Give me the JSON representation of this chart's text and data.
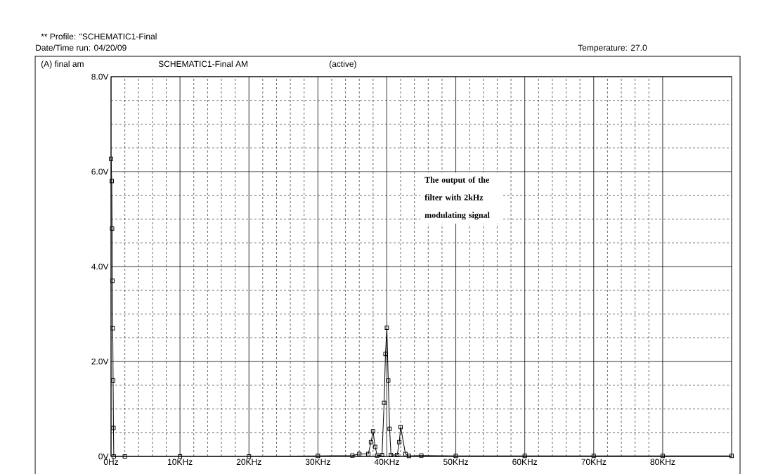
{
  "chart_data": {
    "type": "line",
    "title": "** Profile: \"SCHEMATIC1-Final",
    "subtitle": "Date/Time run: 04/20/09",
    "annotations": [
      "Temperature: 27.0",
      "(A) final am",
      "SCHEMATIC1-Final AM",
      "(active)",
      "The output of the filter with 2kHz modulating signal"
    ],
    "xlim": [
      0,
      90
    ],
    "ylim": [
      0,
      8
    ],
    "xticks": [
      {
        "value": 0,
        "label": "0Hz"
      },
      {
        "value": 10,
        "label": "10KHz"
      },
      {
        "value": 20,
        "label": "20KHz"
      },
      {
        "value": 30,
        "label": "30KHz"
      },
      {
        "value": 40,
        "label": "40KHz"
      },
      {
        "value": 50,
        "label": "50KHz"
      },
      {
        "value": 60,
        "label": "60KHz"
      },
      {
        "value": 70,
        "label": "70KHz"
      },
      {
        "value": 80,
        "label": "80KHz"
      }
    ],
    "yticks": [
      {
        "value": 0,
        "label": "0V"
      },
      {
        "value": 2,
        "label": "2.0V"
      },
      {
        "value": 4,
        "label": "4.0V"
      },
      {
        "value": 6,
        "label": "6.0V"
      },
      {
        "value": 8,
        "label": "8.0V"
      }
    ],
    "grid": true,
    "marker": "square",
    "line_style": "solid",
    "series": [
      {
        "color": "#000000",
        "x": [
          0,
          0.1,
          0.15,
          0.2,
          0.25,
          0.3,
          0.35,
          0.4,
          2,
          10,
          20,
          30,
          35,
          36,
          37.3,
          37.7,
          38,
          38.3,
          38.6,
          39.3,
          39.6,
          39.8,
          40,
          40.2,
          40.4,
          40.6,
          41.5,
          41.8,
          42,
          42.7,
          43.2,
          45,
          50,
          60,
          70,
          80,
          90
        ],
        "values": [
          6.27,
          5.8,
          4.8,
          3.7,
          2.7,
          1.6,
          0.6,
          0,
          0,
          0,
          0,
          0.01,
          0.02,
          0.05,
          0.05,
          0.3,
          0.53,
          0.2,
          0.02,
          0.03,
          1.13,
          2.16,
          2.71,
          1.6,
          0.58,
          0.03,
          0.03,
          0.3,
          0.62,
          0.05,
          0.01,
          0.02,
          0.01,
          0.01,
          0.01,
          0.01,
          0.01
        ]
      }
    ]
  }
}
